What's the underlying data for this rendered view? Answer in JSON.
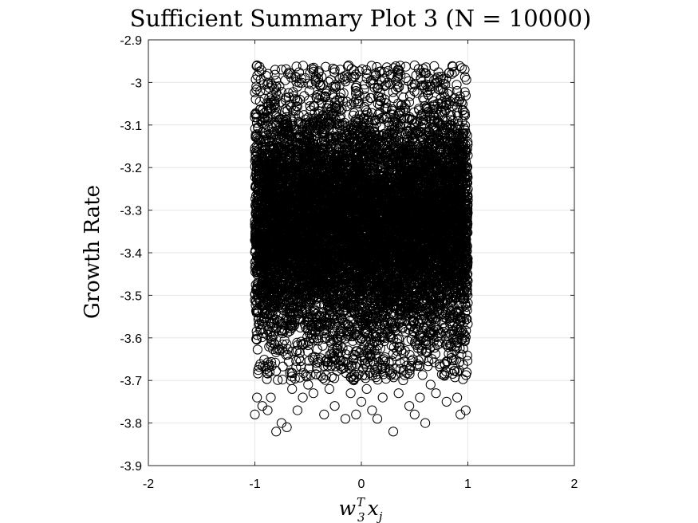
{
  "chart_data": {
    "type": "scatter",
    "title": "Sufficient Summary Plot 3 (N = 10000)",
    "xlabel": {
      "base": "w",
      "sup": "T",
      "sub": "3",
      "base2": "x",
      "sub2": "j"
    },
    "ylabel": "Growth Rate",
    "xlim": [
      -2,
      2
    ],
    "ylim": [
      -3.9,
      -2.9
    ],
    "xticks": [
      -2,
      -1,
      0,
      1,
      2
    ],
    "xtick_labels": [
      "-2",
      "-1",
      "0",
      "1",
      "2"
    ],
    "yticks": [
      -2.9,
      -3.0,
      -3.1,
      -3.2,
      -3.3,
      -3.4,
      -3.5,
      -3.6,
      -3.7,
      -3.8,
      -3.9
    ],
    "ytick_labels": [
      "-2.9",
      "-3",
      "-3.1",
      "-3.2",
      "-3.3",
      "-3.4",
      "-3.5",
      "-3.6",
      "-3.7",
      "-3.8",
      "-3.9"
    ],
    "grid": true,
    "marker": "open-circle",
    "marker_color": "#000000",
    "n_points": 10000,
    "x_range_data": [
      -1,
      1
    ],
    "y_core_range": [
      -3.68,
      -2.98
    ],
    "outliers": [
      [
        -0.98,
        -2.96
      ],
      [
        -0.95,
        -3.02
      ],
      [
        -0.8,
        -3.08
      ],
      [
        -0.75,
        -2.97
      ],
      [
        -0.6,
        -3.01
      ],
      [
        -0.4,
        -3.0
      ],
      [
        -0.25,
        -2.97
      ],
      [
        -0.2,
        -2.99
      ],
      [
        -0.12,
        -2.96
      ],
      [
        -0.05,
        -3.02
      ],
      [
        0.05,
        -2.98
      ],
      [
        0.25,
        -3.0
      ],
      [
        0.35,
        -2.97
      ],
      [
        0.5,
        -2.96
      ],
      [
        0.65,
        -3.01
      ],
      [
        0.85,
        -2.98
      ],
      [
        0.97,
        -2.97
      ],
      [
        -1.0,
        -3.78
      ],
      [
        -0.98,
        -3.74
      ],
      [
        -0.93,
        -3.76
      ],
      [
        -0.88,
        -3.77
      ],
      [
        -0.8,
        -3.82
      ],
      [
        -0.75,
        -3.8
      ],
      [
        -0.7,
        -3.81
      ],
      [
        -0.65,
        -3.72
      ],
      [
        -0.6,
        -3.77
      ],
      [
        -0.55,
        -3.74
      ],
      [
        -0.45,
        -3.73
      ],
      [
        -0.35,
        -3.78
      ],
      [
        -0.3,
        -3.72
      ],
      [
        -0.25,
        -3.76
      ],
      [
        -0.15,
        -3.79
      ],
      [
        -0.1,
        -3.73
      ],
      [
        -0.05,
        -3.78
      ],
      [
        0.0,
        -3.75
      ],
      [
        0.05,
        -3.72
      ],
      [
        0.1,
        -3.77
      ],
      [
        0.15,
        -3.79
      ],
      [
        0.2,
        -3.74
      ],
      [
        0.3,
        -3.82
      ],
      [
        0.35,
        -3.73
      ],
      [
        0.45,
        -3.76
      ],
      [
        0.5,
        -3.78
      ],
      [
        0.55,
        -3.74
      ],
      [
        0.6,
        -3.8
      ],
      [
        0.7,
        -3.73
      ],
      [
        0.8,
        -3.75
      ],
      [
        0.9,
        -3.74
      ],
      [
        0.93,
        -3.78
      ],
      [
        0.98,
        -3.77
      ],
      [
        -0.85,
        -3.74
      ],
      [
        0.65,
        -3.71
      ],
      [
        -0.5,
        -3.71
      ]
    ]
  }
}
